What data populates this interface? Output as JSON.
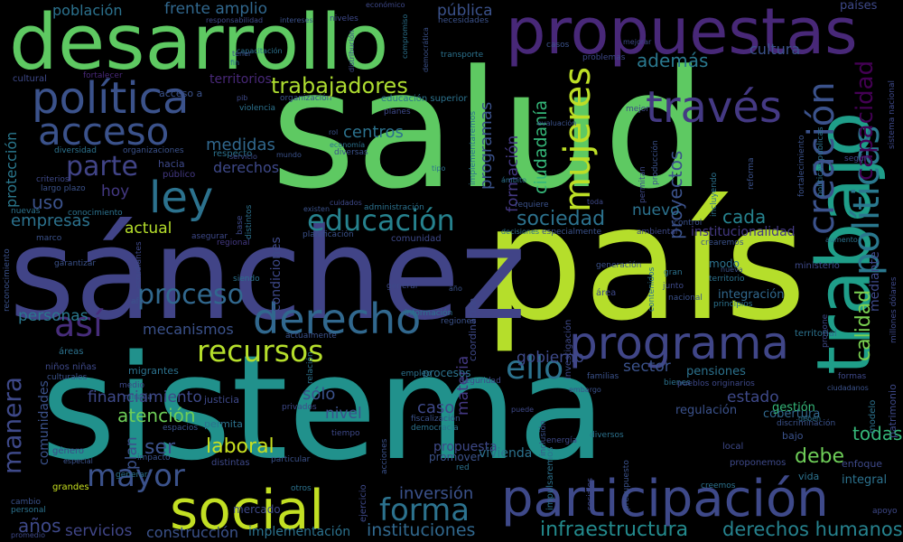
{
  "words": [
    {
      "text": "sistema",
      "color": "#21918c"
    },
    {
      "text": "salud",
      "color": "#5ec962"
    },
    {
      "text": "país",
      "color": "#b5de2b"
    },
    {
      "text": "sánchez",
      "color": "#414487"
    },
    {
      "text": "desarrollo",
      "color": "#5ec962"
    },
    {
      "text": "propuestas",
      "color": "#482878"
    },
    {
      "text": "política",
      "color": "#3b528b"
    },
    {
      "text": "trabajo",
      "color": "#1f9e89"
    },
    {
      "text": "participación",
      "color": "#3e4989"
    },
    {
      "text": "social",
      "color": "#c2df23"
    },
    {
      "text": "programa",
      "color": "#404688"
    },
    {
      "text": "ley",
      "color": "#2c728e"
    },
    {
      "text": "derecho",
      "color": "#31688e"
    },
    {
      "text": "acceso",
      "color": "#3b528b"
    },
    {
      "text": "través",
      "color": "#443983"
    },
    {
      "text": "mujeres",
      "color": "#bddf26"
    },
    {
      "text": "políticas",
      "color": "#2a788e"
    },
    {
      "text": "creación",
      "color": "#3b528b"
    },
    {
      "text": "educación",
      "color": "#26828e"
    },
    {
      "text": "recursos",
      "color": "#b5de2b"
    },
    {
      "text": "mayor",
      "color": "#3b528b"
    },
    {
      "text": "ello",
      "color": "#2c728e"
    },
    {
      "text": "así",
      "color": "#472d7b"
    },
    {
      "text": "proceso",
      "color": "#31688e"
    },
    {
      "text": "parte",
      "color": "#414487"
    },
    {
      "text": "forma",
      "color": "#2c728e"
    },
    {
      "text": "trabajadores",
      "color": "#addc30"
    },
    {
      "text": "sociedad",
      "color": "#2c728e"
    },
    {
      "text": "manera",
      "color": "#3e4989"
    },
    {
      "text": "todas",
      "color": "#35b779"
    },
    {
      "text": "capacidad",
      "color": "#440154"
    },
    {
      "text": "calidad",
      "color": "#7ad151"
    },
    {
      "text": "infraestructura",
      "color": "#238a8d"
    },
    {
      "text": "derechos humanos",
      "color": "#26828e"
    },
    {
      "text": "servicios",
      "color": "#404688"
    },
    {
      "text": "construcción",
      "color": "#3b528b"
    },
    {
      "text": "implementación",
      "color": "#2c728e"
    },
    {
      "text": "instituciones",
      "color": "#31688e"
    },
    {
      "text": "años",
      "color": "#3e4989"
    },
    {
      "text": "inversión",
      "color": "#3b528b"
    },
    {
      "text": "laboral",
      "color": "#c8e020"
    },
    {
      "text": "ser",
      "color": "#3b528b"
    },
    {
      "text": "atención",
      "color": "#6ece58"
    },
    {
      "text": "financiamiento",
      "color": "#3e4989"
    },
    {
      "text": "personas",
      "color": "#2a788e"
    },
    {
      "text": "mecanismos",
      "color": "#3b528b"
    },
    {
      "text": "actual",
      "color": "#b5de2b"
    },
    {
      "text": "empresas",
      "color": "#2c728e"
    },
    {
      "text": "uso",
      "color": "#3b528b"
    },
    {
      "text": "hoy",
      "color": "#443983"
    },
    {
      "text": "medidas",
      "color": "#31688e"
    },
    {
      "text": "derechos",
      "color": "#3e4989"
    },
    {
      "text": "centros",
      "color": "#2c728e"
    },
    {
      "text": "programas",
      "color": "#3b528b"
    },
    {
      "text": "formación",
      "color": "#443983"
    },
    {
      "text": "ciudadanía",
      "color": "#35b779"
    },
    {
      "text": "proyectos",
      "color": "#3b528b"
    },
    {
      "text": "nuevo",
      "color": "#2c728e"
    },
    {
      "text": "cada",
      "color": "#26828e"
    },
    {
      "text": "además",
      "color": "#2a788e"
    },
    {
      "text": "cultura",
      "color": "#3b528b"
    },
    {
      "text": "frente amplio",
      "color": "#31688e"
    },
    {
      "text": "población",
      "color": "#2c728e"
    },
    {
      "text": "pública",
      "color": "#3b528b"
    },
    {
      "text": "países",
      "color": "#3e4989"
    },
    {
      "text": "territorios",
      "color": "#482878"
    },
    {
      "text": "protección",
      "color": "#2a788e"
    },
    {
      "text": "gobierno",
      "color": "#3e4989"
    },
    {
      "text": "materia",
      "color": "#443983"
    },
    {
      "text": "sector",
      "color": "#3b528b"
    },
    {
      "text": "estado",
      "color": "#3e4989"
    },
    {
      "text": "cobertura",
      "color": "#31688e"
    },
    {
      "text": "debe",
      "color": "#6ece58"
    },
    {
      "text": "sólo",
      "color": "#3b528b"
    },
    {
      "text": "caso",
      "color": "#3e4989"
    },
    {
      "text": "nivel",
      "color": "#3b528b"
    },
    {
      "text": "propuesta",
      "color": "#3e4989"
    },
    {
      "text": "vivienda",
      "color": "#2c728e"
    },
    {
      "text": "plan",
      "color": "#3b528b"
    },
    {
      "text": "mercado",
      "color": "#3e4989"
    },
    {
      "text": "comunidades",
      "color": "#3b528b"
    },
    {
      "text": "condiciones",
      "color": "#3e4989"
    },
    {
      "text": "institucionalidad",
      "color": "#443983"
    },
    {
      "text": "integración",
      "color": "#31688e"
    },
    {
      "text": "modo",
      "color": "#2c728e"
    },
    {
      "text": "regulación",
      "color": "#3b528b"
    },
    {
      "text": "gestión",
      "color": "#35b779"
    },
    {
      "text": "pensiones",
      "color": "#2c728e"
    },
    {
      "text": "mediante",
      "color": "#3e4989"
    },
    {
      "text": "procesos",
      "color": "#2c728e"
    },
    {
      "text": "promover",
      "color": "#3b528b"
    },
    {
      "text": "integral",
      "color": "#2c728e"
    },
    {
      "text": "enfoque",
      "color": "#3e4989"
    },
    {
      "text": "vida",
      "color": "#2c728e"
    },
    {
      "text": "bajo",
      "color": "#3b528b"
    },
    {
      "text": "local",
      "color": "#3e4989"
    },
    {
      "text": "acceso a",
      "color": "#3b528b"
    },
    {
      "text": "respecto",
      "color": "#2c728e"
    },
    {
      "text": "hacia",
      "color": "#3e4989"
    },
    {
      "text": "público",
      "color": "#443983"
    },
    {
      "text": "organizaciones",
      "color": "#3b528b"
    },
    {
      "text": "diversidad",
      "color": "#2c728e"
    },
    {
      "text": "cultural",
      "color": "#3e4989"
    },
    {
      "text": "fortalecer",
      "color": "#482878"
    },
    {
      "text": "responsabilidad",
      "color": "#3e4989"
    },
    {
      "text": "intereses",
      "color": "#3b528b"
    },
    {
      "text": "niveles",
      "color": "#3e4989"
    },
    {
      "text": "necesidades",
      "color": "#3b528b"
    },
    {
      "text": "transporte",
      "color": "#2c728e"
    },
    {
      "text": "problemas",
      "color": "#3e4989"
    },
    {
      "text": "casos",
      "color": "#3b528b"
    },
    {
      "text": "educación superior",
      "color": "#2c728e"
    },
    {
      "text": "organización",
      "color": "#3b528b"
    },
    {
      "text": "planes",
      "color": "#3e4989"
    },
    {
      "text": "garantizar",
      "color": "#3b528b"
    },
    {
      "text": "comunidad",
      "color": "#3e4989"
    },
    {
      "text": "requiere",
      "color": "#3b528b"
    },
    {
      "text": "regional",
      "color": "#443983"
    },
    {
      "text": "control",
      "color": "#3b528b"
    },
    {
      "text": "ministerio",
      "color": "#3e4989"
    },
    {
      "text": "territorial",
      "color": "#2c728e"
    },
    {
      "text": "principios",
      "color": "#2c728e"
    },
    {
      "text": "junto",
      "color": "#3e4989"
    },
    {
      "text": "nacional",
      "color": "#3b528b"
    },
    {
      "text": "gran",
      "color": "#2c728e"
    },
    {
      "text": "área",
      "color": "#3e4989"
    },
    {
      "text": "nueva",
      "color": "#3b528b"
    },
    {
      "text": "territorio",
      "color": "#2c728e"
    },
    {
      "text": "seguridad",
      "color": "#3e4989"
    },
    {
      "text": "familias",
      "color": "#3b528b"
    },
    {
      "text": "bienes",
      "color": "#2c728e"
    },
    {
      "text": "formas",
      "color": "#3e4989"
    },
    {
      "text": "ciudadanos",
      "color": "#3b528b"
    },
    {
      "text": "patrimonio",
      "color": "#3e4989"
    },
    {
      "text": "modelo",
      "color": "#2c728e"
    },
    {
      "text": "apoyo",
      "color": "#3e4989"
    },
    {
      "text": "cambio",
      "color": "#3b528b"
    },
    {
      "text": "personal",
      "color": "#2c728e"
    },
    {
      "text": "promedio",
      "color": "#3e4989"
    },
    {
      "text": "grandes",
      "color": "#c8e020"
    },
    {
      "text": "género",
      "color": "#3e4989"
    },
    {
      "text": "especial",
      "color": "#3b528b"
    },
    {
      "text": "generar",
      "color": "#2c728e"
    },
    {
      "text": "impacto",
      "color": "#3b528b"
    },
    {
      "text": "distintas",
      "color": "#3e4989"
    },
    {
      "text": "particular",
      "color": "#3b528b"
    },
    {
      "text": "otros",
      "color": "#2c728e"
    },
    {
      "text": "ejercicio",
      "color": "#3e4989"
    },
    {
      "text": "red",
      "color": "#2c728e"
    },
    {
      "text": "acciones",
      "color": "#3b528b"
    },
    {
      "text": "impulsaremos",
      "color": "#2c728e"
    },
    {
      "text": "energía",
      "color": "#3e4989"
    },
    {
      "text": "inclusión",
      "color": "#3b528b"
    },
    {
      "text": "diversos",
      "color": "#2c728e"
    },
    {
      "text": "sociales",
      "color": "#3e4989"
    },
    {
      "text": "presupuesto",
      "color": "#3b528b"
    },
    {
      "text": "creemos",
      "color": "#2c728e"
    },
    {
      "text": "proponemos",
      "color": "#3e4989"
    },
    {
      "text": "evaluación",
      "color": "#3b528b"
    },
    {
      "text": "implementaremos",
      "color": "#2c728e"
    },
    {
      "text": "permitan",
      "color": "#3e4989"
    },
    {
      "text": "producción",
      "color": "#3b528b"
    },
    {
      "text": "mejor",
      "color": "#3e4989"
    },
    {
      "text": "incluyendo",
      "color": "#2c728e"
    },
    {
      "text": "reforma",
      "color": "#3b528b"
    },
    {
      "text": "según",
      "color": "#3e4989"
    },
    {
      "text": "ámbito",
      "color": "#2c728e"
    },
    {
      "text": "investigación",
      "color": "#3e4989"
    },
    {
      "text": "generación",
      "color": "#3b528b"
    },
    {
      "text": "contenidos",
      "color": "#2c728e"
    },
    {
      "text": "coordinación",
      "color": "#3e4989"
    },
    {
      "text": "regiones",
      "color": "#3b528b"
    },
    {
      "text": "información",
      "color": "#2c728e"
    },
    {
      "text": "estudiantes",
      "color": "#3e4989"
    },
    {
      "text": "afp",
      "color": "#3b528b"
    },
    {
      "text": "migrantes",
      "color": "#2c728e"
    },
    {
      "text": "niños niñas",
      "color": "#3e4989"
    },
    {
      "text": "culturales",
      "color": "#3b528b"
    },
    {
      "text": "áreas",
      "color": "#2c728e"
    },
    {
      "text": "medio",
      "color": "#3e4989"
    },
    {
      "text": "mirada",
      "color": "#3b528b"
    },
    {
      "text": "justicia",
      "color": "#3e4989"
    },
    {
      "text": "espacios",
      "color": "#3b528b"
    },
    {
      "text": "permita",
      "color": "#2c728e"
    },
    {
      "text": "privados",
      "color": "#3e4989"
    },
    {
      "text": "fiscalización",
      "color": "#3b528b"
    },
    {
      "text": "democracia",
      "color": "#2c728e"
    },
    {
      "text": "tiempo",
      "color": "#3e4989"
    },
    {
      "text": "marco",
      "color": "#3b528b"
    },
    {
      "text": "conocimiento",
      "color": "#2c728e"
    },
    {
      "text": "criterios",
      "color": "#3e4989"
    },
    {
      "text": "largo plazo",
      "color": "#3b528b"
    },
    {
      "text": "nuevas",
      "color": "#2c728e"
    },
    {
      "text": "asegurar",
      "color": "#3e4989"
    },
    {
      "text": "planificación",
      "color": "#3b528b"
    },
    {
      "text": "administración",
      "color": "#2c728e"
    },
    {
      "text": "cuidados",
      "color": "#3e4989"
    },
    {
      "text": "existen",
      "color": "#3b528b"
    },
    {
      "text": "distintos",
      "color": "#2c728e"
    },
    {
      "text": "base",
      "color": "#3e4989"
    },
    {
      "text": "especialmente",
      "color": "#3b528b"
    },
    {
      "text": "decisiones",
      "color": "#2c728e"
    },
    {
      "text": "ambiental",
      "color": "#3e4989"
    },
    {
      "text": "diversas",
      "color": "#3b528b"
    },
    {
      "text": "economía",
      "color": "#2c728e"
    },
    {
      "text": "servicio",
      "color": "#3e4989"
    },
    {
      "text": "mundo",
      "color": "#3b528b"
    },
    {
      "text": "violencia",
      "color": "#2c728e"
    },
    {
      "text": "pib",
      "color": "#3e4989"
    },
    {
      "text": "rol",
      "color": "#3b528b"
    },
    {
      "text": "tipo",
      "color": "#2c728e"
    },
    {
      "text": "toda",
      "color": "#3e4989"
    },
    {
      "text": "actualmente",
      "color": "#3b528b"
    },
    {
      "text": "siendo",
      "color": "#2c728e"
    },
    {
      "text": "general",
      "color": "#3e4989"
    },
    {
      "text": "año",
      "color": "#3b528b"
    },
    {
      "text": "relación",
      "color": "#2c728e"
    },
    {
      "text": "pueblos originarios",
      "color": "#3e4989"
    },
    {
      "text": "embargo",
      "color": "#3b528b"
    },
    {
      "text": "empleo",
      "color": "#2c728e"
    },
    {
      "text": "puede",
      "color": "#3e4989"
    },
    {
      "text": "discriminación",
      "color": "#3b528b"
    },
    {
      "text": "deben",
      "color": "#2c728e"
    },
    {
      "text": "millones dólares",
      "color": "#3e4989"
    },
    {
      "text": "fortalecimiento",
      "color": "#3b528b"
    },
    {
      "text": "políticas públicas",
      "color": "#2c728e"
    },
    {
      "text": "sistema nacional",
      "color": "#3e4989"
    },
    {
      "text": "crearemos",
      "color": "#3b528b"
    },
    {
      "text": "aumento",
      "color": "#2c728e"
    },
    {
      "text": "propone",
      "color": "#3e4989"
    },
    {
      "text": "reconocimiento",
      "color": "#3b528b"
    },
    {
      "text": "capacitación",
      "color": "#2c728e"
    },
    {
      "text": "distribución",
      "color": "#3e4989"
    },
    {
      "text": "democrática",
      "color": "#3b528b"
    },
    {
      "text": "compromiso",
      "color": "#2c728e"
    },
    {
      "text": "económico",
      "color": "#3e4989"
    },
    {
      "text": "tener",
      "color": "#3b528b"
    },
    {
      "text": "fin",
      "color": "#2c728e"
    },
    {
      "text": "mejorar",
      "color": "#3e4989"
    }
  ]
}
